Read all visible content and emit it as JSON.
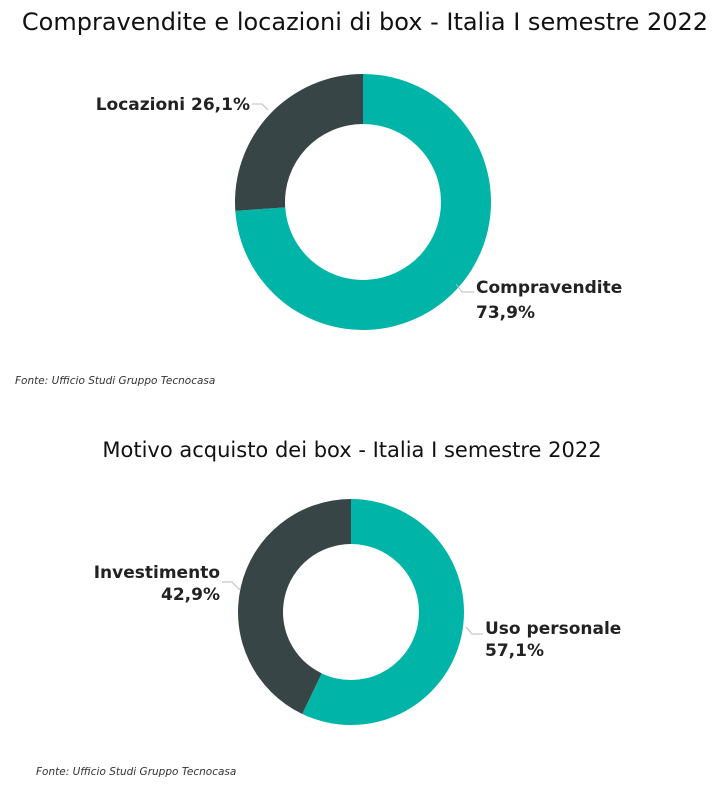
{
  "chart_data": [
    {
      "type": "pie",
      "donut": true,
      "title": "Compravendite e locazioni di box - Italia I semestre 2022",
      "slices": [
        {
          "name": "Compravendite",
          "value": 73.9,
          "label_name": "Compravendite",
          "label_value": "73,9%",
          "color": "#00B5A7"
        },
        {
          "name": "Locazioni",
          "value": 26.1,
          "label_name": "Locazioni",
          "label_value": "26,1%",
          "color": "#384547"
        }
      ],
      "source": "Fonte: Ufficio Studi Gruppo Tecnocasa"
    },
    {
      "type": "pie",
      "donut": true,
      "title": "Motivo acquisto dei box - Italia I semestre 2022",
      "slices": [
        {
          "name": "Uso personale",
          "value": 57.1,
          "label_name": "Uso personale",
          "label_value": "57,1%",
          "color": "#00B5A7"
        },
        {
          "name": "Investimento",
          "value": 42.9,
          "label_name": "Investimento",
          "label_value": "42,9%",
          "color": "#384547"
        }
      ],
      "source": "Fonte: Ufficio Studi Gruppo Tecnocasa"
    }
  ]
}
